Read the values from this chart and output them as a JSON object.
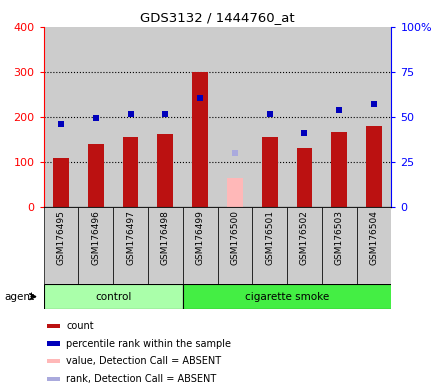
{
  "title": "GDS3132 / 1444760_at",
  "samples": [
    "GSM176495",
    "GSM176496",
    "GSM176497",
    "GSM176498",
    "GSM176499",
    "GSM176500",
    "GSM176501",
    "GSM176502",
    "GSM176503",
    "GSM176504"
  ],
  "bar_values": [
    110,
    140,
    157,
    163,
    300,
    65,
    157,
    132,
    168,
    180
  ],
  "bar_absent": [
    false,
    false,
    false,
    false,
    false,
    true,
    false,
    false,
    false,
    false
  ],
  "percentile_values": [
    185,
    197,
    207,
    207,
    243,
    120,
    207,
    165,
    215,
    228
  ],
  "percentile_absent": [
    false,
    false,
    false,
    false,
    false,
    true,
    false,
    false,
    false,
    false
  ],
  "n_control": 4,
  "n_smoke": 6,
  "ylim_left": [
    0,
    400
  ],
  "ylim_right": [
    0,
    100
  ],
  "yticks_left": [
    0,
    100,
    200,
    300,
    400
  ],
  "yticks_right": [
    0,
    25,
    50,
    75,
    100
  ],
  "ytick_labels_left": [
    "0",
    "100",
    "200",
    "300",
    "400"
  ],
  "ytick_labels_right": [
    "0",
    "25",
    "50",
    "75",
    "100%"
  ],
  "bar_color_normal": "#bb1111",
  "bar_color_absent": "#ffb8b8",
  "dot_color_normal": "#0000bb",
  "dot_color_absent": "#aaaadd",
  "control_bg": "#aaffaa",
  "smoke_bg": "#44ee44",
  "sample_bg": "#cccccc",
  "plot_bg": "#ffffff",
  "legend_items": [
    {
      "color": "#bb1111",
      "label": "count"
    },
    {
      "color": "#0000bb",
      "label": "percentile rank within the sample"
    },
    {
      "color": "#ffb8b8",
      "label": "value, Detection Call = ABSENT"
    },
    {
      "color": "#aaaadd",
      "label": "rank, Detection Call = ABSENT"
    }
  ],
  "agent_label": "agent",
  "group_labels": [
    "control",
    "cigarette smoke"
  ],
  "figsize": [
    4.35,
    3.84
  ],
  "dpi": 100
}
